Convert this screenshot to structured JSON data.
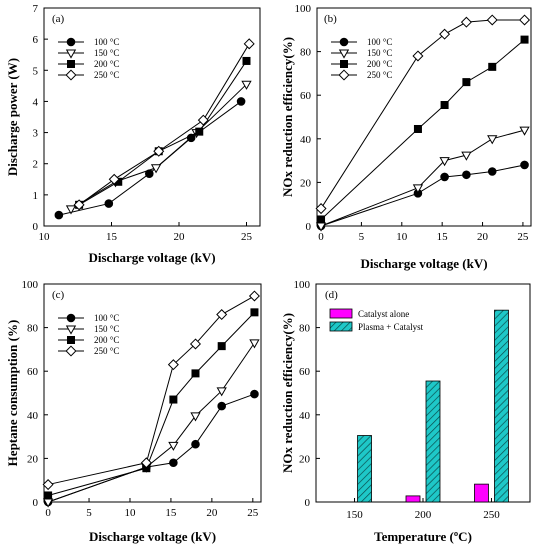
{
  "chart_data": [
    {
      "panel": "(a)",
      "type": "line",
      "xlabel": "Discharge voltage (kV)",
      "ylabel": "Discharge power (W)",
      "xlim": [
        10,
        26
      ],
      "ylim": [
        0,
        7
      ],
      "xticks": [
        10,
        15,
        20,
        25
      ],
      "yticks": [
        0,
        1,
        2,
        3,
        4,
        5,
        6,
        7
      ],
      "legend_position": "top-left",
      "series": [
        {
          "name": "100 °C",
          "marker": "circle-filled",
          "x": [
            11.1,
            14.8,
            17.8,
            20.9,
            24.6
          ],
          "y": [
            0.35,
            0.72,
            1.68,
            2.83,
            4.0
          ]
        },
        {
          "name": "150 °C",
          "marker": "triangle-open",
          "x": [
            12.0,
            15.3,
            18.3,
            21.3,
            25.0
          ],
          "y": [
            0.55,
            1.42,
            1.87,
            3.0,
            4.55
          ]
        },
        {
          "name": "200 °C",
          "marker": "square-filled",
          "x": [
            12.6,
            15.5,
            18.5,
            21.5,
            25.0
          ],
          "y": [
            0.68,
            1.42,
            2.4,
            3.03,
            5.3
          ]
        },
        {
          "name": "250 °C",
          "marker": "diamond-open",
          "x": [
            12.6,
            15.2,
            18.5,
            21.8,
            25.2
          ],
          "y": [
            0.68,
            1.5,
            2.4,
            3.4,
            5.85
          ]
        }
      ]
    },
    {
      "panel": "(b)",
      "type": "line",
      "xlabel": "Discharge voltage (kV)",
      "ylabel": "NOx reduction efficiency(%)",
      "xlim": [
        -0.5,
        26
      ],
      "ylim": [
        0,
        100
      ],
      "xticks": [
        0,
        5,
        10,
        15,
        20,
        25
      ],
      "yticks": [
        0,
        20,
        40,
        60,
        80,
        100
      ],
      "legend_position": "top-left",
      "series": [
        {
          "name": "100 °C",
          "marker": "circle-filled",
          "x": [
            0,
            12,
            15.3,
            18,
            21.2,
            25.2
          ],
          "y": [
            0,
            15,
            22.5,
            23.5,
            25,
            28
          ]
        },
        {
          "name": "150 °C",
          "marker": "triangle-open",
          "x": [
            0,
            12,
            15.3,
            18,
            21.2,
            25.2
          ],
          "y": [
            0,
            17.5,
            30,
            32.5,
            40,
            44
          ]
        },
        {
          "name": "200 °C",
          "marker": "square-filled",
          "x": [
            0,
            12,
            15.3,
            18,
            21.2,
            25.2
          ],
          "y": [
            3,
            44.5,
            55.5,
            66,
            73,
            85.5
          ]
        },
        {
          "name": "250 °C",
          "marker": "diamond-open",
          "x": [
            0,
            12,
            15.3,
            18,
            21.2,
            25.2
          ],
          "y": [
            8,
            78,
            88,
            93.5,
            94.5,
            94.5
          ]
        }
      ]
    },
    {
      "panel": "(c)",
      "type": "line",
      "xlabel": "Discharge voltage (kV)",
      "ylabel": "Heptane consumption (%)",
      "xlim": [
        -0.5,
        26
      ],
      "ylim": [
        0,
        100
      ],
      "xticks": [
        0,
        5,
        10,
        15,
        20,
        25
      ],
      "yticks": [
        0,
        20,
        40,
        60,
        80,
        100
      ],
      "legend_position": "top-left",
      "series": [
        {
          "name": "100 °C",
          "marker": "circle-filled",
          "x": [
            0,
            12,
            15.3,
            18,
            21.2,
            25.2
          ],
          "y": [
            0,
            16,
            18,
            26.5,
            44,
            49.5
          ]
        },
        {
          "name": "150 °C",
          "marker": "triangle-open",
          "x": [
            0,
            12,
            15.3,
            18,
            21.2,
            25.2
          ],
          "y": [
            0,
            16,
            26,
            39.5,
            51,
            73
          ]
        },
        {
          "name": "200 °C",
          "marker": "square-filled",
          "x": [
            0,
            12,
            15.3,
            18,
            21.2,
            25.2
          ],
          "y": [
            3,
            15.5,
            47,
            59,
            71.5,
            87
          ]
        },
        {
          "name": "250 °C",
          "marker": "diamond-open",
          "x": [
            0,
            12,
            15.3,
            18,
            21.2,
            25.2
          ],
          "y": [
            8,
            18,
            63,
            72.5,
            86,
            94.5
          ]
        }
      ]
    },
    {
      "panel": "(d)",
      "type": "bar",
      "xlabel": "Temperature (ºC)",
      "ylabel": "NOx reduction efficiency(%)",
      "categories": [
        "150",
        "200",
        "250"
      ],
      "ylim": [
        0,
        100
      ],
      "yticks": [
        0,
        20,
        40,
        60,
        80,
        100
      ],
      "legend_position": "top-left",
      "series": [
        {
          "name": "Catalyst alone",
          "color": "#ff00ff",
          "values": [
            0,
            2.8,
            8.2
          ]
        },
        {
          "name": "Plasma + Catalyst",
          "color": "#1ec8c8",
          "values": [
            30.5,
            55.5,
            88
          ]
        }
      ]
    }
  ]
}
